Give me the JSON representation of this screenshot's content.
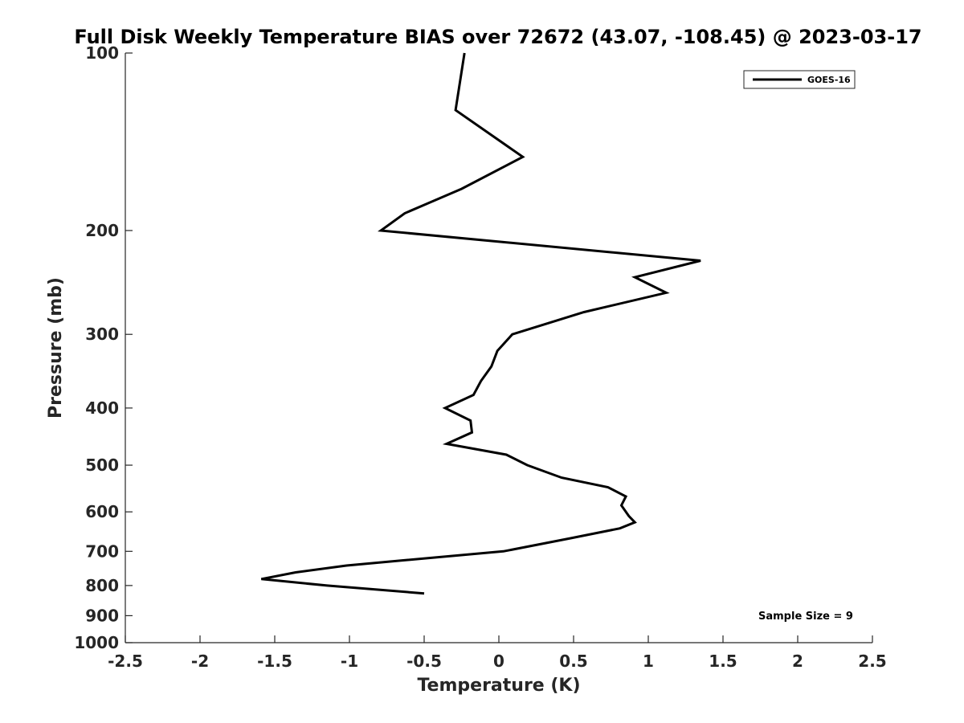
{
  "chart_data": {
    "type": "line",
    "title": "Full Disk Weekly Temperature BIAS over 72672 (43.07, -108.45) @ 2023-03-17",
    "xlabel": "Temperature (K)",
    "ylabel": "Pressure (mb)",
    "xlim": [
      -2.5,
      2.5
    ],
    "ylim": [
      1000,
      100
    ],
    "y_scale": "log",
    "y_reversed": true,
    "x_ticks": [
      "-2.5",
      "-2",
      "-1.5",
      "-1",
      "-0.5",
      "0",
      "0.5",
      "1",
      "1.5",
      "2",
      "2.5"
    ],
    "x_tick_values": [
      -2.5,
      -2,
      -1.5,
      -1,
      -0.5,
      0,
      0.5,
      1,
      1.5,
      2,
      2.5
    ],
    "y_ticks": [
      "100",
      "200",
      "300",
      "400",
      "500",
      "600",
      "700",
      "800",
      "900",
      "1000"
    ],
    "y_tick_values": [
      100,
      200,
      300,
      400,
      500,
      600,
      700,
      800,
      900,
      1000
    ],
    "grid": false,
    "legend_position": "top-right",
    "annotation": "Sample Size = 9",
    "series": [
      {
        "name": "GOES-16",
        "color": "#000000",
        "points": [
          [
            -0.23,
            100
          ],
          [
            -0.29,
            125
          ],
          [
            0.16,
            150
          ],
          [
            -0.25,
            170
          ],
          [
            -0.63,
            187
          ],
          [
            -0.79,
            200
          ],
          [
            1.35,
            225
          ],
          [
            0.91,
            240
          ],
          [
            1.12,
            255
          ],
          [
            0.57,
            275
          ],
          [
            0.09,
            300
          ],
          [
            -0.01,
            320
          ],
          [
            -0.05,
            340
          ],
          [
            -0.12,
            360
          ],
          [
            -0.17,
            380
          ],
          [
            -0.36,
            400
          ],
          [
            -0.19,
            420
          ],
          [
            -0.18,
            440
          ],
          [
            -0.35,
            460
          ],
          [
            0.05,
            480
          ],
          [
            0.19,
            500
          ],
          [
            0.42,
            525
          ],
          [
            0.73,
            545
          ],
          [
            0.85,
            565
          ],
          [
            0.82,
            585
          ],
          [
            0.87,
            610
          ],
          [
            0.91,
            625
          ],
          [
            0.81,
            640
          ],
          [
            0.48,
            665
          ],
          [
            0.03,
            700
          ],
          [
            -0.64,
            725
          ],
          [
            -1.02,
            740
          ],
          [
            -1.36,
            760
          ],
          [
            -1.59,
            780
          ],
          [
            -1.15,
            800
          ],
          [
            -0.5,
            825
          ]
        ]
      }
    ]
  }
}
